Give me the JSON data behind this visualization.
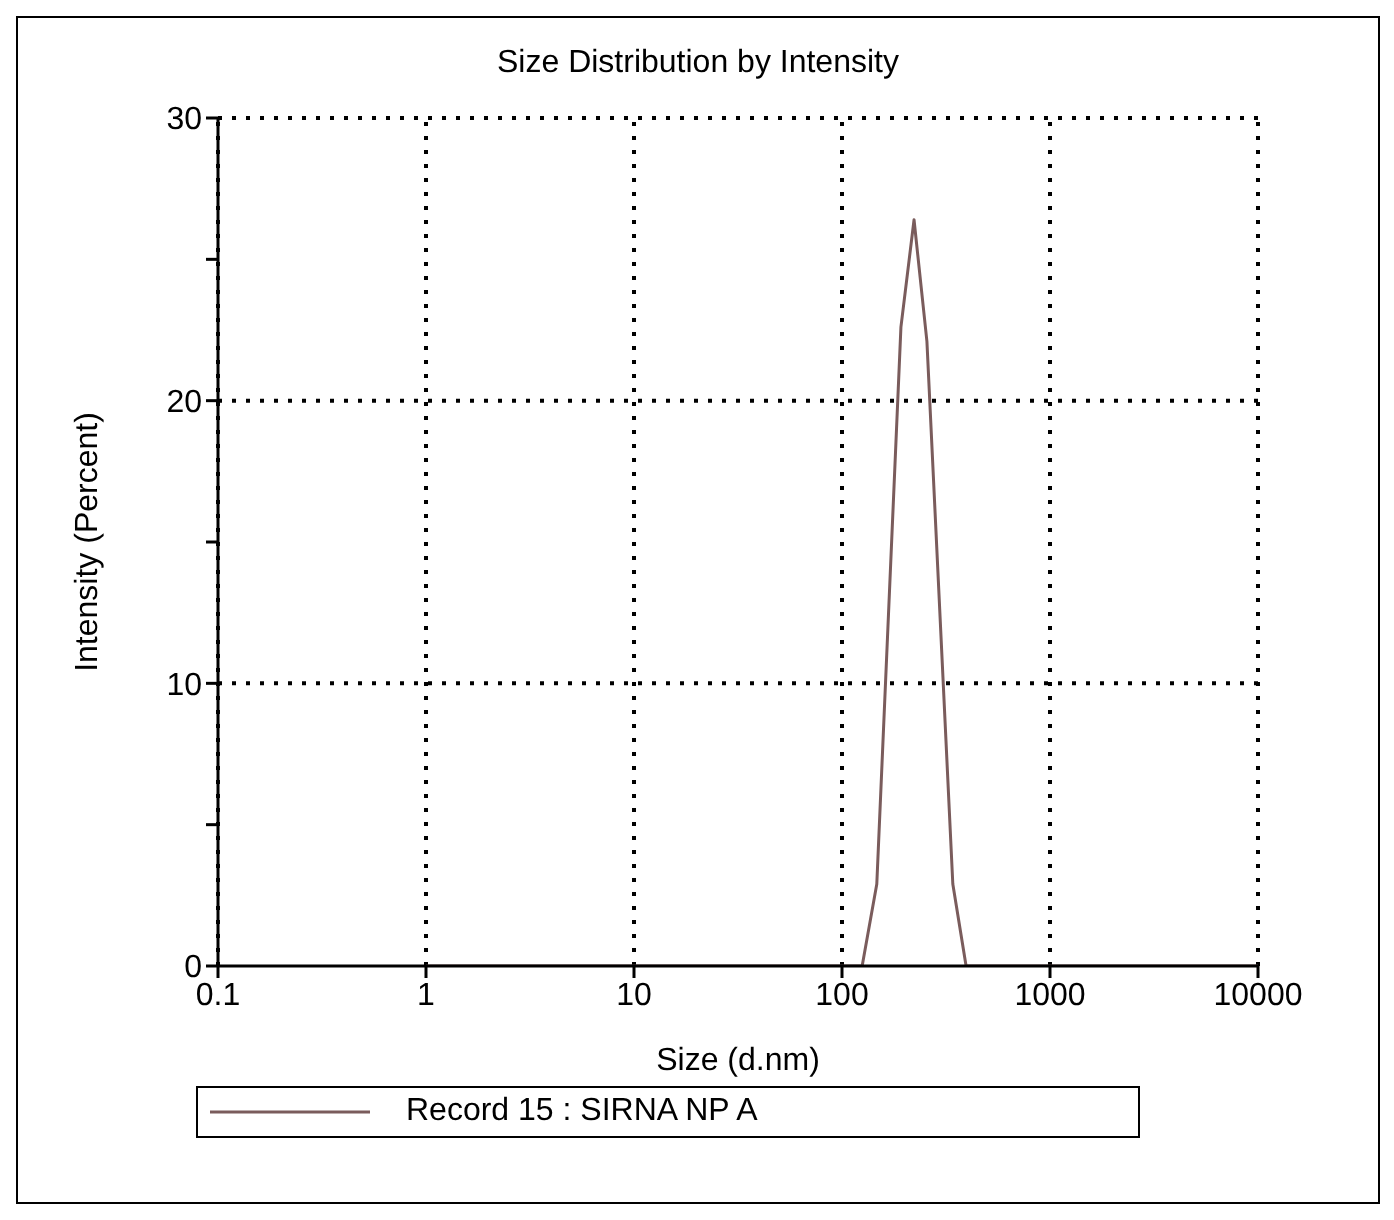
{
  "chart_data": {
    "type": "line",
    "title": "Size Distribution by Intensity",
    "xlabel": "Size (d.nm)",
    "ylabel": "Intensity (Percent)",
    "log": "x",
    "grid": true,
    "legend": "bottom",
    "line_style": "solid",
    "marker": "none",
    "xlim": [
      0.1,
      10000
    ],
    "xticks": [
      {
        "value": 0.1,
        "label": "0.1"
      },
      1,
      10,
      100,
      1000,
      10000
    ],
    "ylim": [
      0,
      30
    ],
    "yticks": [
      0,
      {
        "value": 5,
        "label": null
      },
      10,
      {
        "value": 15,
        "label": null
      },
      20,
      {
        "value": 25,
        "label": null
      },
      30
    ],
    "series": [
      {
        "name": "Record 15 : SIRNA NP A",
        "color": "#7a5c5c",
        "x": [
          1,
          10,
          100,
          125,
          147,
          192,
          222,
          256,
          341,
          395,
          1000,
          10000
        ],
        "values": [
          0,
          0,
          0,
          0,
          2.9,
          22.6,
          26.4,
          22.1,
          2.9,
          0,
          0,
          0
        ]
      }
    ]
  }
}
